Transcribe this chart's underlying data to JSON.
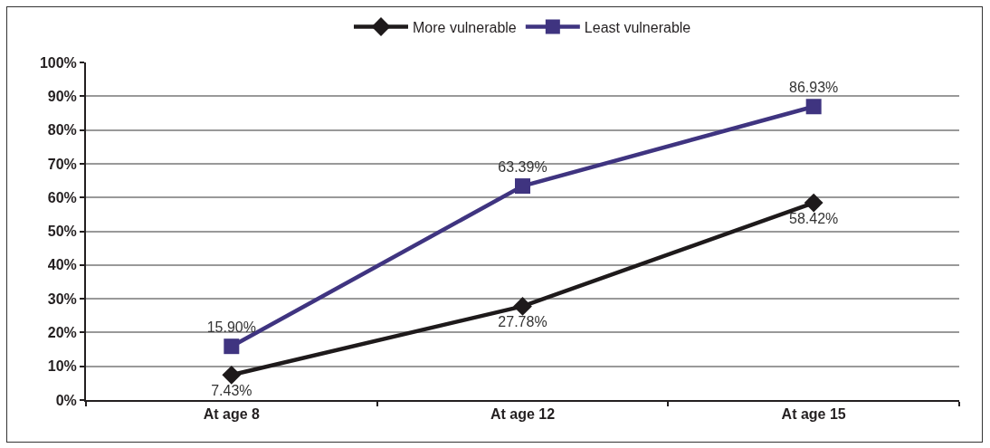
{
  "chart_data": {
    "type": "line",
    "categories": [
      "At age 8",
      "At age 12",
      "At age 15"
    ],
    "series": [
      {
        "name": "More vulnerable",
        "color": "#1e1a1b",
        "marker": "diamond",
        "values": [
          7.43,
          27.78,
          58.42
        ],
        "value_labels": [
          "7.43%",
          "27.78%",
          "58.42%"
        ]
      },
      {
        "name": "Least vulnerable",
        "color": "#3f3480",
        "marker": "square",
        "values": [
          15.9,
          63.39,
          86.93
        ],
        "value_labels": [
          "15.90%",
          "63.39%",
          "86.93%"
        ]
      }
    ],
    "ylim": [
      0,
      100
    ],
    "yticks": [
      {
        "value": 0,
        "label": "0%"
      },
      {
        "value": 10,
        "label": "10%"
      },
      {
        "value": 20,
        "label": "20%"
      },
      {
        "value": 30,
        "label": "30%"
      },
      {
        "value": 40,
        "label": "40%"
      },
      {
        "value": 50,
        "label": "50%"
      },
      {
        "value": 60,
        "label": "60%"
      },
      {
        "value": 70,
        "label": "70%"
      },
      {
        "value": 80,
        "label": "80%"
      },
      {
        "value": 90,
        "label": "90%"
      },
      {
        "value": 100,
        "label": "100%"
      }
    ],
    "grid": "y",
    "legend": "top"
  }
}
